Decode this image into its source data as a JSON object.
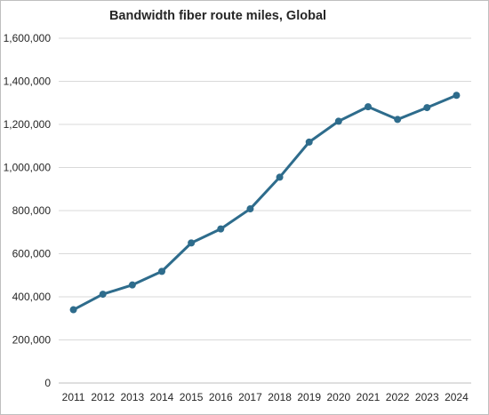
{
  "chart_data": {
    "type": "line",
    "title": "Bandwidth fiber route miles, Global",
    "xlabel": "",
    "ylabel": "",
    "categories": [
      "2011",
      "2012",
      "2013",
      "2014",
      "2015",
      "2016",
      "2017",
      "2018",
      "2019",
      "2020",
      "2021",
      "2022",
      "2023",
      "2024"
    ],
    "series": [
      {
        "values": [
          340000,
          412000,
          455000,
          518000,
          650000,
          715000,
          808000,
          955000,
          1118000,
          1215000,
          1282000,
          1223000,
          1278000,
          1335000
        ]
      }
    ],
    "ylim": [
      0,
      1600000
    ],
    "yticks": [
      0,
      200000,
      400000,
      600000,
      800000,
      1000000,
      1200000,
      1400000,
      1600000
    ],
    "ytick_labels": [
      "0",
      "200,000",
      "400,000",
      "600,000",
      "800,000",
      "1,000,000",
      "1,200,000",
      "1,400,000",
      "1,600,000"
    ],
    "grid": "horizontal",
    "line_color": "#2e6c8c",
    "legend": "none"
  }
}
